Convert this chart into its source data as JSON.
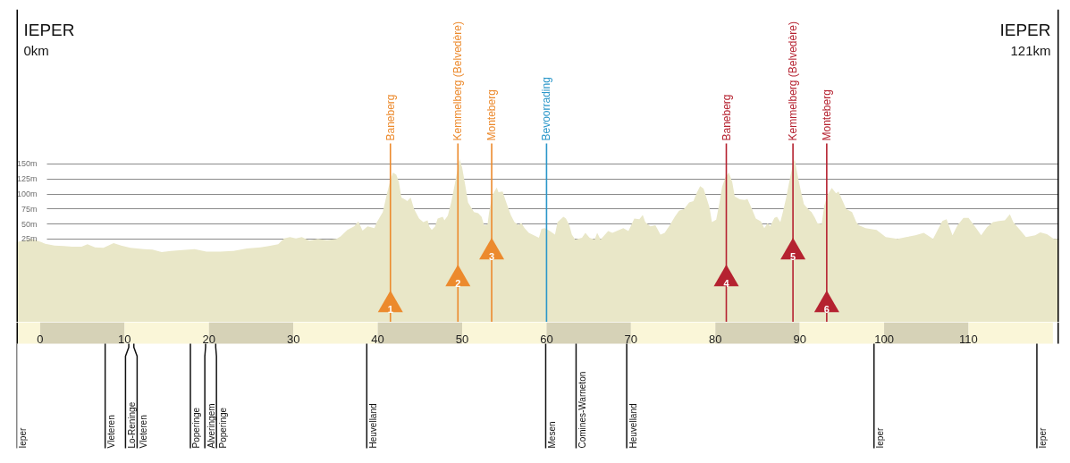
{
  "chart_data": {
    "type": "area",
    "x": [
      -2.8,
      -2.0,
      -1.0,
      0.1,
      0.6,
      1.7,
      2.8,
      3.8,
      4.9,
      5.6,
      6.5,
      7.5,
      8.7,
      9.6,
      10.7,
      12.3,
      13.3,
      14.4,
      15.5,
      16.5,
      18.3,
      19.7,
      21.3,
      22.9,
      24.5,
      26.1,
      27.1,
      28.2,
      28.9,
      29.6,
      30.3,
      31.0,
      31.9,
      32.9,
      34.0,
      35.1,
      35.6,
      36.4,
      37.2,
      37.7,
      38.2,
      38.8,
      39.6,
      39.9,
      40.6,
      41.1,
      41.5,
      41.8,
      42.2,
      42.5,
      42.8,
      43.2,
      43.5,
      43.9,
      44.3,
      44.9,
      45.4,
      45.9,
      46.1,
      46.4,
      46.8,
      47.1,
      47.7,
      47.9,
      48.3,
      48.7,
      49.0,
      49.5,
      49.7,
      50.0,
      50.4,
      50.7,
      51.4,
      51.9,
      52.3,
      52.6,
      53.0,
      53.2,
      53.6,
      54.1,
      54.3,
      54.8,
      55.1,
      55.5,
      55.8,
      56.2,
      56.7,
      57.0,
      57.4,
      57.9,
      58.5,
      59.1,
      59.4,
      59.8,
      60.4,
      61.0,
      61.3,
      62.0,
      62.3,
      62.7,
      63.0,
      63.4,
      64.2,
      64.6,
      65.1,
      65.7,
      66.0,
      66.4,
      67.3,
      67.8,
      68.3,
      69.1,
      69.7,
      70.4,
      71.0,
      71.4,
      71.7,
      72.3,
      72.9,
      73.5,
      74.0,
      74.6,
      75.2,
      75.7,
      76.3,
      76.9,
      77.4,
      77.8,
      78.2,
      78.6,
      78.9,
      79.3,
      79.6,
      80.1,
      80.5,
      80.8,
      81.2,
      81.6,
      82.0,
      82.3,
      82.9,
      83.5,
      83.8,
      84.3,
      84.8,
      85.4,
      85.8,
      86.2,
      86.5,
      87.0,
      87.3,
      87.7,
      88.0,
      88.4,
      88.8,
      89.2,
      89.4,
      89.7,
      90.1,
      90.5,
      91.1,
      91.4,
      91.8,
      92.1,
      92.6,
      92.9,
      93.3,
      93.8,
      94.3,
      94.6,
      95.0,
      95.5,
      96.2,
      96.7,
      97.0,
      97.8,
      99.1,
      100.2,
      101.6,
      102.6,
      103.7,
      104.7,
      105.8,
      106.9,
      107.4,
      108.1,
      108.7,
      109.4,
      110.0,
      110.8,
      111.5,
      112.2,
      112.9,
      113.6,
      114.3,
      114.9,
      115.3,
      116.1,
      116.8,
      117.9,
      118.5,
      119.3,
      120.1,
      120.7
    ],
    "series": [
      {
        "color": "#e9e7c8",
        "values": [
          20,
          22,
          25,
          20,
          17,
          14,
          13,
          12,
          12,
          16,
          11,
          10,
          18,
          14,
          10,
          8,
          7,
          3,
          5,
          6,
          8,
          4,
          4,
          5,
          9,
          11,
          13,
          16,
          26,
          28,
          26,
          28,
          22,
          25,
          23,
          25,
          29,
          40,
          46,
          54,
          39,
          46,
          43,
          53,
          70,
          101,
          123,
          136,
          132,
          120,
          94,
          91,
          88,
          94,
          75,
          59,
          53,
          56,
          46,
          40,
          46,
          59,
          62,
          56,
          64,
          86,
          107,
          144,
          158,
          144,
          112,
          86,
          70,
          68,
          62,
          48,
          49,
          70,
          99,
          111,
          103,
          104,
          91,
          75,
          64,
          53,
          48,
          52,
          43,
          35,
          31,
          27,
          42,
          43,
          38,
          32,
          53,
          62,
          59,
          48,
          32,
          24,
          27,
          35,
          27,
          24,
          35,
          24,
          38,
          35,
          38,
          43,
          38,
          59,
          58,
          65,
          53,
          46,
          48,
          32,
          35,
          48,
          62,
          72,
          75,
          86,
          88,
          102,
          113,
          109,
          96,
          78,
          53,
          57,
          86,
          112,
          128,
          136,
          120,
          96,
          91,
          90,
          92,
          76,
          59,
          54,
          43,
          51,
          46,
          60,
          62,
          53,
          70,
          94,
          123,
          150,
          158,
          135,
          107,
          83,
          73,
          70,
          60,
          51,
          50,
          80,
          99,
          110,
          101,
          104,
          91,
          75,
          70,
          53,
          48,
          43,
          40,
          28,
          25,
          28,
          31,
          35,
          25,
          55,
          58,
          31,
          48,
          60,
          60,
          45,
          31,
          45,
          53,
          55,
          56,
          66,
          53,
          40,
          28,
          31,
          36,
          33,
          25,
          25
        ]
      }
    ],
    "xlim": [
      -2.8,
      120.7
    ],
    "ylim": [
      -114,
      408
    ],
    "xticks": [
      0,
      10,
      20,
      30,
      40,
      50,
      60,
      70,
      80,
      90,
      100,
      110
    ],
    "yticks": [
      {
        "value": 25,
        "label": "25m"
      },
      {
        "value": 50,
        "label": "50m"
      },
      {
        "value": 75,
        "label": "75m"
      },
      {
        "value": 100,
        "label": "100m"
      },
      {
        "value": 125,
        "label": "125m"
      },
      {
        "value": 150,
        "label": "150m"
      }
    ],
    "grid": "y",
    "bands": [
      {
        "axis": "y",
        "from": -114,
        "to": 0,
        "color": "#e9e7c8"
      }
    ],
    "ref_lines": [
      {
        "axis": "x",
        "value": 41.5,
        "label": "Baneberg",
        "color": "#ec8a2d"
      },
      {
        "axis": "x",
        "value": 49.5,
        "label": "Kemmelberg (Belvedère)",
        "color": "#ec8a2d"
      },
      {
        "axis": "x",
        "value": 53.5,
        "label": "Monteberg",
        "color": "#ec8a2d"
      },
      {
        "axis": "x",
        "value": 60.0,
        "label": "Bevoorrading",
        "color": "#2b97c9"
      },
      {
        "axis": "x",
        "value": 81.3,
        "label": "Baneberg",
        "color": "#b52230"
      },
      {
        "axis": "x",
        "value": 89.2,
        "label": "Kemmelberg (Belvedère)",
        "color": "#b52230"
      },
      {
        "axis": "x",
        "value": 93.2,
        "label": "Monteberg",
        "color": "#b52230"
      },
      {
        "axis": "x",
        "value": -2.8,
        "label": "Ieper"
      },
      {
        "axis": "x",
        "value": 7.7,
        "label": "Vleteren"
      },
      {
        "axis": "x",
        "value": 10.5,
        "label": "Lo-Reninge"
      },
      {
        "axis": "x",
        "value": 11.1,
        "label": "Vleteren"
      },
      {
        "axis": "x",
        "value": 17.8,
        "label": "Poperinge"
      },
      {
        "axis": "x",
        "value": 19.6,
        "label": "Alveringem"
      },
      {
        "axis": "x",
        "value": 20.8,
        "label": "Poperinge"
      },
      {
        "axis": "x",
        "value": 38.7,
        "label": "Heuvelland"
      },
      {
        "axis": "x",
        "value": 59.9,
        "label": "Mesen"
      },
      {
        "axis": "x",
        "value": 63.5,
        "label": "Comines-Warneton"
      },
      {
        "axis": "x",
        "value": 69.5,
        "label": "Heuvelland"
      },
      {
        "axis": "x",
        "value": 98.8,
        "label": "Ieper"
      },
      {
        "axis": "x",
        "value": 118.1,
        "label": "Ieper"
      }
    ],
    "annotations": [
      "IEPER",
      "0km",
      "IEPER",
      "121km",
      {
        "text": "1",
        "x": 41.5,
        "y": -85
      },
      {
        "text": "2",
        "x": 49.5,
        "y": -42
      },
      {
        "text": "3",
        "x": 53.5,
        "y": 3
      },
      {
        "text": "4",
        "x": 81.3,
        "y": -42
      },
      {
        "text": "5",
        "x": 89.2,
        "y": 3
      },
      {
        "text": "6",
        "x": 93.2,
        "y": -85
      }
    ]
  }
}
